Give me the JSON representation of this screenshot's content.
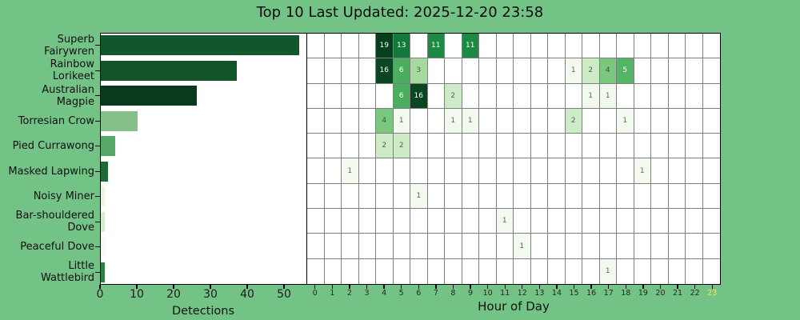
{
  "title": "Top 10 Last Updated: 2025-12-20 23:58",
  "background_color": "#73c387",
  "chart_data": [
    {
      "type": "bar",
      "orientation": "horizontal",
      "xlabel": "Detections",
      "xticks": [
        0,
        10,
        20,
        30,
        40,
        50
      ],
      "xlim": [
        0,
        56
      ],
      "categories": [
        "Superb Fairywren",
        "Rainbow Lorikeet",
        "Australian Magpie",
        "Torresian Crow",
        "Pied Currawong",
        "Masked Lapwing",
        "Noisy Miner",
        "Bar-shouldered Dove",
        "Peaceful Dove",
        "Little Wattlebird"
      ],
      "category_label_lines": [
        [
          "Superb",
          "Fairywren"
        ],
        [
          "Rainbow",
          "Lorikeet"
        ],
        [
          "Australian",
          "Magpie"
        ],
        [
          "Torresian Crow"
        ],
        [
          "Pied Currawong"
        ],
        [
          "Masked Lapwing"
        ],
        [
          "Noisy Miner"
        ],
        [
          "Bar-shouldered",
          "Dove"
        ],
        [
          "Peaceful Dove"
        ],
        [
          "Little",
          "Wattlebird"
        ]
      ],
      "values": [
        54,
        37,
        26,
        10,
        4,
        2,
        1,
        1,
        1,
        1
      ],
      "bar_colors": [
        "#10572c",
        "#115428",
        "#0a3a1d",
        "#85c188",
        "#56a768",
        "#1e6b38",
        "#eaf5e6",
        "#d8ecd3",
        "#f7fbf5",
        "#2e8048"
      ]
    },
    {
      "type": "heatmap",
      "xlabel": "Hour of Day",
      "xticks": [
        "0",
        "1",
        "2",
        "3",
        "4",
        "5",
        "6",
        "7",
        "8",
        "9",
        "10",
        "11",
        "12",
        "13",
        "14",
        "15",
        "16",
        "17",
        "18",
        "19",
        "20",
        "21",
        "22",
        "23"
      ],
      "highlighted_xtick": "23",
      "highlight_color": "#e9e94f",
      "grid_color": "#7f7f7f",
      "rows": [
        {
          "species": "Superb Fairywren",
          "cells": {
            "4": 19,
            "5": 13,
            "7": 11,
            "9": 11
          }
        },
        {
          "species": "Rainbow Lorikeet",
          "cells": {
            "4": 16,
            "5": 6,
            "6": 3,
            "15": 1,
            "16": 2,
            "17": 4,
            "18": 5
          }
        },
        {
          "species": "Australian Magpie",
          "cells": {
            "5": 6,
            "6": 16,
            "8": 2,
            "16": 1,
            "17": 1
          }
        },
        {
          "species": "Torresian Crow",
          "cells": {
            "4": 4,
            "5": 1,
            "8": 1,
            "9": 1,
            "15": 2,
            "18": 1
          }
        },
        {
          "species": "Pied Currawong",
          "cells": {
            "4": 2,
            "5": 2
          }
        },
        {
          "species": "Masked Lapwing",
          "cells": {
            "2": 1,
            "19": 1
          }
        },
        {
          "species": "Noisy Miner",
          "cells": {
            "6": 1
          }
        },
        {
          "species": "Bar-shouldered Dove",
          "cells": {
            "11": 1
          }
        },
        {
          "species": "Peaceful Dove",
          "cells": {
            "12": 1
          }
        },
        {
          "species": "Little Wattlebird",
          "cells": {
            "17": 1
          }
        }
      ],
      "value_colors": {
        "1": {
          "bg": "#f2faef",
          "fg": "#5a6a5a"
        },
        "2": {
          "bg": "#cdebc6",
          "fg": "#526452"
        },
        "3": {
          "bg": "#a6da9f",
          "fg": "#4a5c4a"
        },
        "4": {
          "bg": "#7cc77e",
          "fg": "#3f523f"
        },
        "5": {
          "bg": "#52b465",
          "fg": "#ffffff"
        },
        "6": {
          "bg": "#4bae5f",
          "fg": "#ffffff"
        },
        "11": {
          "bg": "#1d8a44",
          "fg": "#ffffff"
        },
        "13": {
          "bg": "#13793a",
          "fg": "#ffffff"
        },
        "16": {
          "bg": "#0a4621",
          "fg": "#ffffff"
        },
        "19": {
          "bg": "#073f1d",
          "fg": "#ffffff"
        }
      }
    }
  ]
}
